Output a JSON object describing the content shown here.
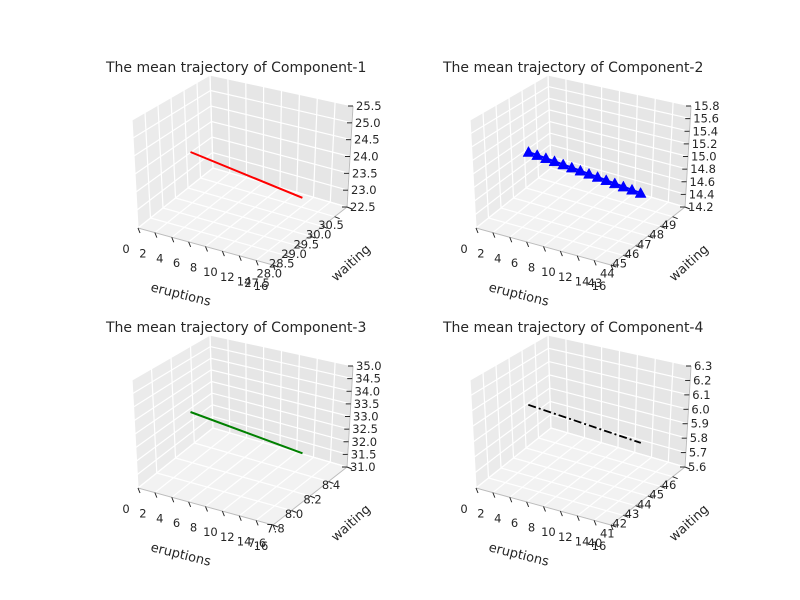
{
  "chart_data": [
    {
      "type": "line",
      "title": "The mean trajectory of Component-1",
      "xlabel": "eruptions",
      "ylabel": "waiting",
      "xticks": [
        "0",
        "2",
        "4",
        "6",
        "8",
        "10",
        "12",
        "14",
        "16"
      ],
      "yticks": [
        "27.5",
        "28.0",
        "28.5",
        "29.0",
        "29.5",
        "30.0",
        "30.5"
      ],
      "zticks": [
        "22.5",
        "23.0",
        "23.5",
        "24.0",
        "24.5",
        "25.0",
        "25.5"
      ],
      "xlim": [
        0,
        16
      ],
      "ylim": [
        27.5,
        30.5
      ],
      "zlim": [
        22.5,
        25.5
      ],
      "grid": true,
      "series": [
        {
          "color": "#ff0000",
          "marker": "none",
          "linestyle": "solid",
          "x": [
            2,
            15
          ],
          "y": [
            29.0,
            29.0
          ],
          "z": [
            24.0,
            23.5
          ]
        }
      ]
    },
    {
      "type": "line",
      "title": "The mean trajectory of Component-2",
      "xlabel": "eruptions",
      "ylabel": "waiting",
      "xticks": [
        "0",
        "2",
        "4",
        "6",
        "8",
        "10",
        "12",
        "14",
        "16"
      ],
      "yticks": [
        "43",
        "44",
        "45",
        "46",
        "47",
        "48",
        "49"
      ],
      "zticks": [
        "14.2",
        "14.4",
        "14.6",
        "14.8",
        "15.0",
        "15.2",
        "15.4",
        "15.6",
        "15.8"
      ],
      "xlim": [
        0,
        16
      ],
      "ylim": [
        43,
        49
      ],
      "zlim": [
        14.2,
        15.8
      ],
      "grid": true,
      "series": [
        {
          "color": "#0000ff",
          "marker": "triangle",
          "linestyle": "solid",
          "x": [
            2,
            3,
            4,
            5,
            6,
            7,
            8,
            9,
            10,
            11,
            12,
            13,
            14,
            15
          ],
          "y": [
            46,
            46,
            46,
            46,
            46,
            46,
            46,
            46,
            46,
            46,
            46,
            46,
            46,
            46
          ],
          "z": [
            15.0,
            14.985,
            14.97,
            14.955,
            14.94,
            14.925,
            14.91,
            14.895,
            14.88,
            14.865,
            14.85,
            14.835,
            14.82,
            14.805
          ]
        }
      ]
    },
    {
      "type": "line",
      "title": "The mean trajectory of Component-3",
      "xlabel": "eruptions",
      "ylabel": "waiting",
      "xticks": [
        "0",
        "2",
        "4",
        "6",
        "8",
        "10",
        "12",
        "14",
        "16"
      ],
      "yticks": [
        "7.6",
        "7.8",
        "8.0",
        "8.2",
        "8.4"
      ],
      "zticks": [
        "31.0",
        "31.5",
        "32.0",
        "32.5",
        "33.0",
        "33.5",
        "34.0",
        "34.5",
        "35.0"
      ],
      "xlim": [
        0,
        16
      ],
      "ylim": [
        7.5,
        8.5
      ],
      "zlim": [
        31.0,
        35.0
      ],
      "grid": true,
      "series": [
        {
          "color": "#008000",
          "marker": "none",
          "linestyle": "solid",
          "x": [
            2,
            15
          ],
          "y": [
            8.0,
            8.0
          ],
          "z": [
            33.0,
            32.5
          ]
        }
      ]
    },
    {
      "type": "line",
      "title": "The mean trajectory of Component-4",
      "xlabel": "eruptions",
      "ylabel": "waiting",
      "xticks": [
        "0",
        "2",
        "4",
        "6",
        "8",
        "10",
        "12",
        "14",
        "16"
      ],
      "yticks": [
        "40",
        "41",
        "42",
        "43",
        "44",
        "45",
        "46"
      ],
      "zticks": [
        "5.6",
        "5.7",
        "5.8",
        "5.9",
        "6.0",
        "6.1",
        "6.2",
        "6.3"
      ],
      "xlim": [
        0,
        16
      ],
      "ylim": [
        40,
        46
      ],
      "zlim": [
        5.6,
        6.3
      ],
      "grid": true,
      "series": [
        {
          "color": "#000000",
          "marker": "none",
          "linestyle": "dashdot",
          "x": [
            2,
            15
          ],
          "y": [
            43,
            43
          ],
          "z": [
            6.0,
            5.93
          ]
        }
      ]
    }
  ]
}
